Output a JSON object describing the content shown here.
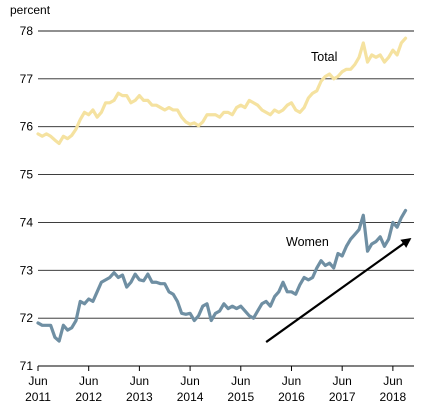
{
  "chart_data": {
    "type": "line",
    "ylabel": "percent",
    "ylim": [
      71,
      78
    ],
    "yticks": [
      "71",
      "72",
      "73",
      "74",
      "75",
      "76",
      "77",
      "78"
    ],
    "xlim": [
      "2011-06",
      "2018-11"
    ],
    "xticks": [
      {
        "month": "Jun",
        "year": "2011",
        "date": "2011-06"
      },
      {
        "month": "Jun",
        "year": "2012",
        "date": "2012-06"
      },
      {
        "month": "Jun",
        "year": "2013",
        "date": "2013-06"
      },
      {
        "month": "Jun",
        "year": "2014",
        "date": "2014-06"
      },
      {
        "month": "Jun",
        "year": "2015",
        "date": "2015-06"
      },
      {
        "month": "Jun",
        "year": "2016",
        "date": "2016-06"
      },
      {
        "month": "Jun",
        "year": "2017",
        "date": "2017-06"
      },
      {
        "month": "Jun",
        "year": "2018",
        "date": "2018-06"
      }
    ],
    "grid": "horizontal",
    "series": [
      {
        "name": "Total",
        "color": "#f5e2a0",
        "points": [
          [
            "2011-06",
            75.85
          ],
          [
            "2011-07",
            75.8
          ],
          [
            "2011-08",
            75.85
          ],
          [
            "2011-09",
            75.8
          ],
          [
            "2011-10",
            75.72
          ],
          [
            "2011-11",
            75.65
          ],
          [
            "2011-12",
            75.8
          ],
          [
            "2012-01",
            75.75
          ],
          [
            "2012-02",
            75.82
          ],
          [
            "2012-03",
            75.95
          ],
          [
            "2012-04",
            76.15
          ],
          [
            "2012-05",
            76.3
          ],
          [
            "2012-06",
            76.25
          ],
          [
            "2012-07",
            76.35
          ],
          [
            "2012-08",
            76.2
          ],
          [
            "2012-09",
            76.3
          ],
          [
            "2012-10",
            76.5
          ],
          [
            "2012-11",
            76.5
          ],
          [
            "2012-12",
            76.55
          ],
          [
            "2013-01",
            76.7
          ],
          [
            "2013-02",
            76.65
          ],
          [
            "2013-03",
            76.65
          ],
          [
            "2013-04",
            76.5
          ],
          [
            "2013-05",
            76.55
          ],
          [
            "2013-06",
            76.65
          ],
          [
            "2013-07",
            76.55
          ],
          [
            "2013-08",
            76.55
          ],
          [
            "2013-09",
            76.45
          ],
          [
            "2013-10",
            76.45
          ],
          [
            "2013-11",
            76.4
          ],
          [
            "2013-12",
            76.35
          ],
          [
            "2014-01",
            76.4
          ],
          [
            "2014-02",
            76.35
          ],
          [
            "2014-03",
            76.35
          ],
          [
            "2014-04",
            76.2
          ],
          [
            "2014-05",
            76.1
          ],
          [
            "2014-06",
            76.05
          ],
          [
            "2014-07",
            76.08
          ],
          [
            "2014-08",
            76.02
          ],
          [
            "2014-09",
            76.1
          ],
          [
            "2014-10",
            76.25
          ],
          [
            "2014-11",
            76.25
          ],
          [
            "2014-12",
            76.25
          ],
          [
            "2015-01",
            76.2
          ],
          [
            "2015-02",
            76.3
          ],
          [
            "2015-03",
            76.3
          ],
          [
            "2015-04",
            76.25
          ],
          [
            "2015-05",
            76.4
          ],
          [
            "2015-06",
            76.45
          ],
          [
            "2015-07",
            76.4
          ],
          [
            "2015-08",
            76.55
          ],
          [
            "2015-09",
            76.5
          ],
          [
            "2015-10",
            76.45
          ],
          [
            "2015-11",
            76.35
          ],
          [
            "2015-12",
            76.3
          ],
          [
            "2016-01",
            76.25
          ],
          [
            "2016-02",
            76.35
          ],
          [
            "2016-03",
            76.3
          ],
          [
            "2016-04",
            76.35
          ],
          [
            "2016-05",
            76.45
          ],
          [
            "2016-06",
            76.5
          ],
          [
            "2016-07",
            76.35
          ],
          [
            "2016-08",
            76.3
          ],
          [
            "2016-09",
            76.4
          ],
          [
            "2016-10",
            76.6
          ],
          [
            "2016-11",
            76.7
          ],
          [
            "2016-12",
            76.75
          ],
          [
            "2017-01",
            76.95
          ],
          [
            "2017-02",
            77.05
          ],
          [
            "2017-03",
            77.1
          ],
          [
            "2017-04",
            77.0
          ],
          [
            "2017-05",
            77.05
          ],
          [
            "2017-06",
            77.15
          ],
          [
            "2017-07",
            77.2
          ],
          [
            "2017-08",
            77.2
          ],
          [
            "2017-09",
            77.3
          ],
          [
            "2017-10",
            77.45
          ],
          [
            "2017-11",
            77.75
          ],
          [
            "2017-12",
            77.35
          ],
          [
            "2018-01",
            77.5
          ],
          [
            "2018-02",
            77.45
          ],
          [
            "2018-03",
            77.5
          ],
          [
            "2018-04",
            77.35
          ],
          [
            "2018-05",
            77.45
          ],
          [
            "2018-06",
            77.6
          ],
          [
            "2018-07",
            77.5
          ],
          [
            "2018-08",
            77.75
          ],
          [
            "2018-09",
            77.85
          ]
        ]
      },
      {
        "name": "Women",
        "color": "#6f8fa3",
        "points": [
          [
            "2011-06",
            71.9
          ],
          [
            "2011-07",
            71.85
          ],
          [
            "2011-08",
            71.85
          ],
          [
            "2011-09",
            71.85
          ],
          [
            "2011-10",
            71.6
          ],
          [
            "2011-11",
            71.52
          ],
          [
            "2011-12",
            71.85
          ],
          [
            "2012-01",
            71.75
          ],
          [
            "2012-02",
            71.8
          ],
          [
            "2012-03",
            71.95
          ],
          [
            "2012-04",
            72.35
          ],
          [
            "2012-05",
            72.3
          ],
          [
            "2012-06",
            72.4
          ],
          [
            "2012-07",
            72.35
          ],
          [
            "2012-08",
            72.55
          ],
          [
            "2012-09",
            72.75
          ],
          [
            "2012-10",
            72.8
          ],
          [
            "2012-11",
            72.85
          ],
          [
            "2012-12",
            72.95
          ],
          [
            "2013-01",
            72.85
          ],
          [
            "2013-02",
            72.9
          ],
          [
            "2013-03",
            72.65
          ],
          [
            "2013-04",
            72.75
          ],
          [
            "2013-05",
            72.92
          ],
          [
            "2013-06",
            72.8
          ],
          [
            "2013-07",
            72.78
          ],
          [
            "2013-08",
            72.92
          ],
          [
            "2013-09",
            72.75
          ],
          [
            "2013-10",
            72.75
          ],
          [
            "2013-11",
            72.72
          ],
          [
            "2013-12",
            72.72
          ],
          [
            "2014-01",
            72.55
          ],
          [
            "2014-02",
            72.5
          ],
          [
            "2014-03",
            72.35
          ],
          [
            "2014-04",
            72.1
          ],
          [
            "2014-05",
            72.08
          ],
          [
            "2014-06",
            72.1
          ],
          [
            "2014-07",
            71.95
          ],
          [
            "2014-08",
            72.05
          ],
          [
            "2014-09",
            72.25
          ],
          [
            "2014-10",
            72.3
          ],
          [
            "2014-11",
            71.95
          ],
          [
            "2014-12",
            72.1
          ],
          [
            "2015-01",
            72.15
          ],
          [
            "2015-02",
            72.3
          ],
          [
            "2015-03",
            72.2
          ],
          [
            "2015-04",
            72.25
          ],
          [
            "2015-05",
            72.2
          ],
          [
            "2015-06",
            72.25
          ],
          [
            "2015-07",
            72.15
          ],
          [
            "2015-08",
            72.05
          ],
          [
            "2015-09",
            72.0
          ],
          [
            "2015-10",
            72.15
          ],
          [
            "2015-11",
            72.3
          ],
          [
            "2015-12",
            72.35
          ],
          [
            "2016-01",
            72.25
          ],
          [
            "2016-02",
            72.45
          ],
          [
            "2016-03",
            72.55
          ],
          [
            "2016-04",
            72.75
          ],
          [
            "2016-05",
            72.55
          ],
          [
            "2016-06",
            72.55
          ],
          [
            "2016-07",
            72.5
          ],
          [
            "2016-08",
            72.7
          ],
          [
            "2016-09",
            72.85
          ],
          [
            "2016-10",
            72.8
          ],
          [
            "2016-11",
            72.85
          ],
          [
            "2016-12",
            73.05
          ],
          [
            "2017-01",
            73.2
          ],
          [
            "2017-02",
            73.1
          ],
          [
            "2017-03",
            73.15
          ],
          [
            "2017-04",
            73.05
          ],
          [
            "2017-05",
            73.35
          ],
          [
            "2017-06",
            73.3
          ],
          [
            "2017-07",
            73.5
          ],
          [
            "2017-08",
            73.65
          ],
          [
            "2017-09",
            73.75
          ],
          [
            "2017-10",
            73.85
          ],
          [
            "2017-11",
            74.15
          ],
          [
            "2017-12",
            73.4
          ],
          [
            "2018-01",
            73.55
          ],
          [
            "2018-02",
            73.6
          ],
          [
            "2018-03",
            73.7
          ],
          [
            "2018-04",
            73.5
          ],
          [
            "2018-05",
            73.65
          ],
          [
            "2018-06",
            74.0
          ],
          [
            "2018-07",
            73.9
          ],
          [
            "2018-08",
            74.1
          ],
          [
            "2018-09",
            74.25
          ]
        ]
      }
    ],
    "annotations": [
      {
        "text": "Total",
        "type": "series-label",
        "series": "Total"
      },
      {
        "text": "Women",
        "type": "series-label",
        "series": "Women"
      },
      {
        "type": "trend-arrow",
        "from": [
          "2015-12",
          71.5
        ],
        "to": [
          "2018-10",
          73.65
        ]
      }
    ]
  }
}
